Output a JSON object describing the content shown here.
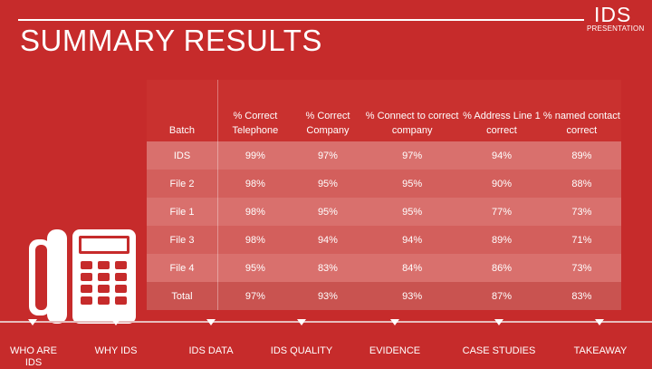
{
  "header": {
    "title": "SUMMARY RESULTS",
    "logo_main": "IDS",
    "logo_sub": "PRESENTATION"
  },
  "icons": {
    "phone": "desk-phone-icon"
  },
  "colors": {
    "background": "#c62b2b",
    "row_light": "#d9706d",
    "row_mid": "#d35f5c",
    "text": "#ffffff"
  },
  "table": {
    "headers": [
      "Batch",
      "% Correct Telephone",
      "% Correct Company",
      "% Connect to correct company",
      "% Address Line 1 correct",
      "% named contact correct"
    ],
    "rows": [
      [
        "IDS",
        "99%",
        "97%",
        "97%",
        "94%",
        "89%"
      ],
      [
        "File 2",
        "98%",
        "95%",
        "95%",
        "90%",
        "88%"
      ],
      [
        "File 1",
        "98%",
        "95%",
        "95%",
        "77%",
        "73%"
      ],
      [
        "File 3",
        "98%",
        "94%",
        "94%",
        "89%",
        "71%"
      ],
      [
        "File 4",
        "95%",
        "83%",
        "84%",
        "86%",
        "73%"
      ],
      [
        "Total",
        "97%",
        "93%",
        "93%",
        "87%",
        "83%"
      ]
    ]
  },
  "nav": {
    "items": [
      "WHO ARE IDS",
      "WHY IDS",
      "IDS DATA",
      "IDS QUALITY",
      "EVIDENCE",
      "CASE STUDIES",
      "TAKEAWAY"
    ]
  }
}
